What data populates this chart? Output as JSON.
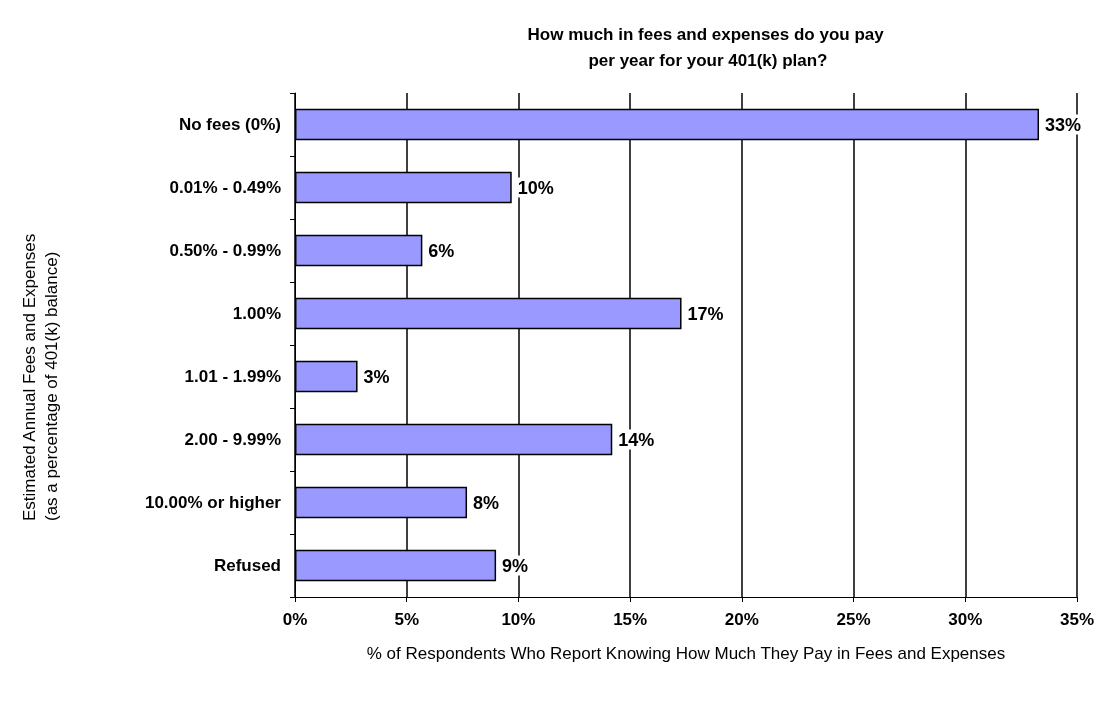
{
  "chart_data": {
    "type": "bar",
    "orientation": "horizontal",
    "title": "How much in fees and expenses do you pay per year for your 401(k) plan?",
    "xlabel": "% of Respondents Who Report Knowing How Much They Pay in Fees and Expenses",
    "ylabel": "Estimated Annual Fees and Expenses (as a percentage of 401(k) balance)",
    "categories": [
      "No fees (0%)",
      "0.01% - 0.49%",
      "0.50% - 0.99%",
      "1.00%",
      "1.01 - 1.99%",
      "2.00 - 9.99%",
      "10.00% or higher",
      "Refused"
    ],
    "values": [
      33.3,
      9.7,
      5.7,
      17.3,
      2.8,
      14.2,
      7.7,
      9.0
    ],
    "value_labels": [
      "33%",
      "10%",
      "6%",
      "17%",
      "3%",
      "14%",
      "8%",
      "9%"
    ],
    "color": "#9999ff",
    "xlim": [
      0,
      35
    ],
    "xticks": [
      {
        "value": 0,
        "label": "0%"
      },
      {
        "value": 5,
        "label": "5%"
      },
      {
        "value": 10,
        "label": "10%"
      },
      {
        "value": 15,
        "label": "15%"
      },
      {
        "value": 20,
        "label": "20%"
      },
      {
        "value": 25,
        "label": "25%"
      },
      {
        "value": 30,
        "label": "30%"
      },
      {
        "value": 35,
        "label": "35%"
      }
    ],
    "grid": "x"
  }
}
